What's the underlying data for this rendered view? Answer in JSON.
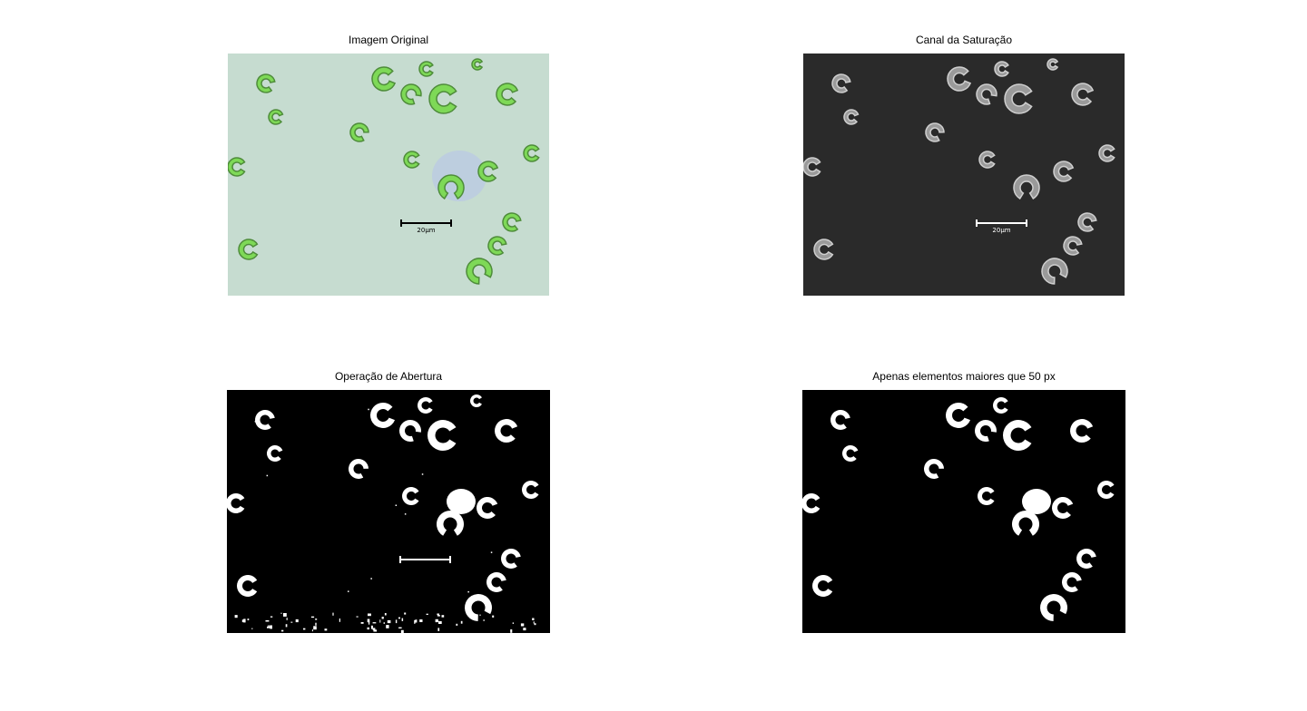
{
  "panels": [
    {
      "id": "original",
      "title": "Imagem Original",
      "scale_label": "20μm"
    },
    {
      "id": "saturation",
      "title": "Canal da Saturação",
      "scale_label": "20μm"
    },
    {
      "id": "opening",
      "title": "Operação de Abertura"
    },
    {
      "id": "filtered",
      "title": "Apenas elementos maiores que 50 px"
    }
  ],
  "colors": {
    "original_background": "#c6dcd0",
    "original_cell": "#7ed957",
    "original_cell_edge": "#4e8c3a",
    "saturation_background": "#2a2a2a",
    "saturation_cell": "#9a9a9a",
    "binary_background": "#000000",
    "binary_foreground": "#ffffff"
  }
}
